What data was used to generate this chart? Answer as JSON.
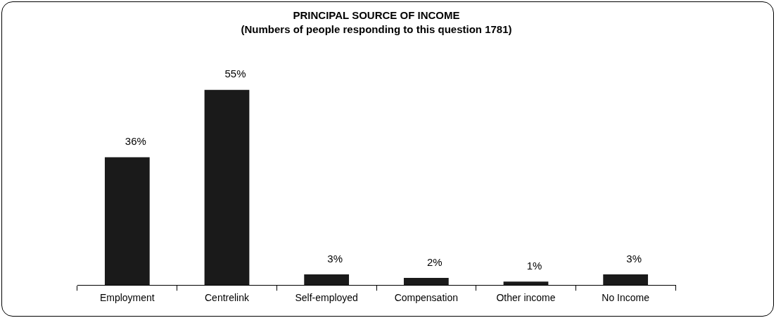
{
  "chart_data": {
    "type": "bar",
    "title": "PRINCIPAL SOURCE OF INCOME",
    "subtitle": "(Numbers of people responding to this question 1781)",
    "categories": [
      "Employment",
      "Centrelink",
      "Self-employed",
      "Compensation",
      "Other income",
      "No Income"
    ],
    "values": [
      36,
      55,
      3,
      2,
      1,
      3
    ],
    "value_labels": [
      "36%",
      "55%",
      "3%",
      "2%",
      "1%",
      "3%"
    ],
    "color": "#1a1a1a",
    "tick_labels": "x",
    "legend": false
  }
}
